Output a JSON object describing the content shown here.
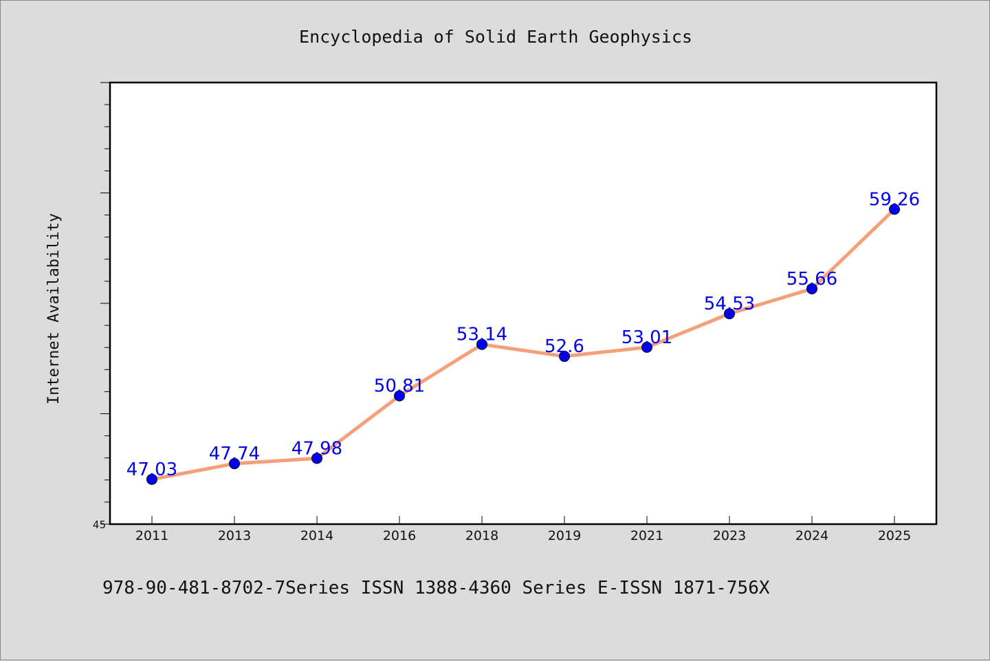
{
  "chart_data": {
    "type": "line",
    "title": "Encyclopedia of Solid Earth Geophysics",
    "xlabel": "",
    "ylabel": "Internet Availability",
    "categories": [
      "2011",
      "2013",
      "2014",
      "2016",
      "2018",
      "2019",
      "2021",
      "2023",
      "2024",
      "2025"
    ],
    "series": [
      {
        "values": [
          47.03,
          47.74,
          47.98,
          50.81,
          53.14,
          52.6,
          53.01,
          54.53,
          55.66,
          59.26
        ]
      }
    ],
    "data_labels": [
      "47.03",
      "47.74",
      "47.98",
      "50.81",
      "53.14",
      "52.6",
      "53.01",
      "54.53",
      "55.66",
      "59.26"
    ],
    "ylim": [
      45,
      65
    ],
    "y_tick_labels": [
      "45"
    ],
    "grid": false,
    "legend": "none",
    "colors": {
      "line": "#f4a07a",
      "marker": "#0000ee",
      "data_label": "#0000ee"
    }
  },
  "footer": {
    "text": "978-90-481-8702-7Series ISSN 1388-4360 Series E-ISSN 1871-756X"
  }
}
